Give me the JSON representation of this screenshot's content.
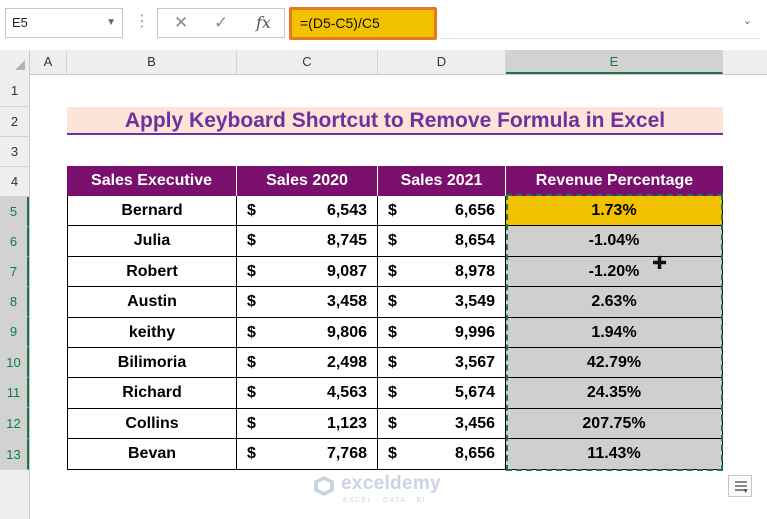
{
  "formula_bar": {
    "name_box": "E5",
    "dots": "⋮",
    "cancel_glyph": "✕",
    "enter_glyph": "✓",
    "fx_label": "fx",
    "formula": "=(D5-C5)/C5"
  },
  "columns": [
    "A",
    "B",
    "C",
    "D",
    "E"
  ],
  "selected_column": "E",
  "rows": [
    "1",
    "2",
    "3",
    "4",
    "5",
    "6",
    "7",
    "8",
    "9",
    "10",
    "11",
    "12",
    "13"
  ],
  "title": "Apply Keyboard Shortcut to Remove Formula in Excel",
  "table": {
    "headers": [
      "Sales Executive",
      "Sales 2020",
      "Sales 2021",
      "Revenue Percentage"
    ],
    "currency_symbol": "$",
    "rows": [
      {
        "name": "Bernard",
        "s2020": "6,543",
        "s2021": "6,656",
        "pct": "1.73%"
      },
      {
        "name": "Julia",
        "s2020": "8,745",
        "s2021": "8,654",
        "pct": "-1.04%"
      },
      {
        "name": "Robert",
        "s2020": "9,087",
        "s2021": "8,978",
        "pct": "-1.20%"
      },
      {
        "name": "Austin",
        "s2020": "3,458",
        "s2021": "3,549",
        "pct": "2.63%"
      },
      {
        "name": "keithy",
        "s2020": "9,806",
        "s2021": "9,996",
        "pct": "1.94%"
      },
      {
        "name": "Bilimoria",
        "s2020": "2,498",
        "s2021": "3,567",
        "pct": "42.79%"
      },
      {
        "name": "Richard",
        "s2020": "4,563",
        "s2021": "5,674",
        "pct": "24.35%"
      },
      {
        "name": "Collins",
        "s2020": "1,123",
        "s2021": "3,456",
        "pct": "207.75%"
      },
      {
        "name": "Bevan",
        "s2020": "7,768",
        "s2021": "8,656",
        "pct": "11.43%"
      }
    ]
  },
  "watermark": {
    "name": "exceldemy",
    "sub": "EXCEL · DATA · BI"
  },
  "colors": {
    "header_purple": "#7b0f6e",
    "title_text": "#7030a0",
    "title_bg": "#fce4d6",
    "highlight_yellow": "#f2c200",
    "selection_green": "#217346",
    "formula_border": "#e87722"
  }
}
